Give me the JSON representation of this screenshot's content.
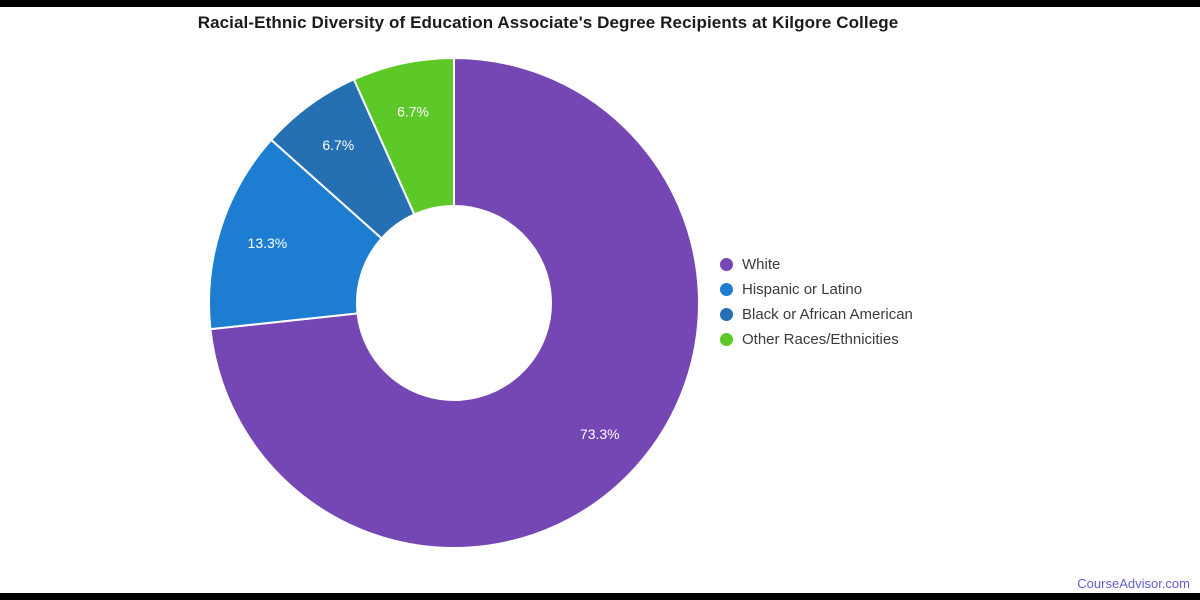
{
  "page": {
    "background": "#ffffff",
    "letterbox_color": "#000000"
  },
  "title": "Racial-Ethnic Diversity of Education Associate's Degree Recipients at Kilgore College",
  "chart_data": {
    "type": "pie",
    "subtype": "donut",
    "title": "Racial-Ethnic Diversity of Education Associate's Degree Recipients at Kilgore College",
    "start_angle_deg": 0,
    "direction": "clockwise",
    "legend_position": "right",
    "categories": [
      "White",
      "Hispanic or Latino",
      "Black or African American",
      "Other Races/Ethnicities"
    ],
    "values": [
      73.3,
      13.3,
      6.7,
      6.7
    ],
    "slice_labels": [
      "73.3%",
      "13.3%",
      "6.7%",
      "6.7%"
    ],
    "colors": [
      "#7547b4",
      "#1c7dd1",
      "#2470b3",
      "#5dc928"
    ],
    "slice_label_color": "#ffffff",
    "slice_border_color": "#ffffff"
  },
  "footer": {
    "link_text": "CourseAdvisor.com",
    "link_color": "#615fc9"
  }
}
